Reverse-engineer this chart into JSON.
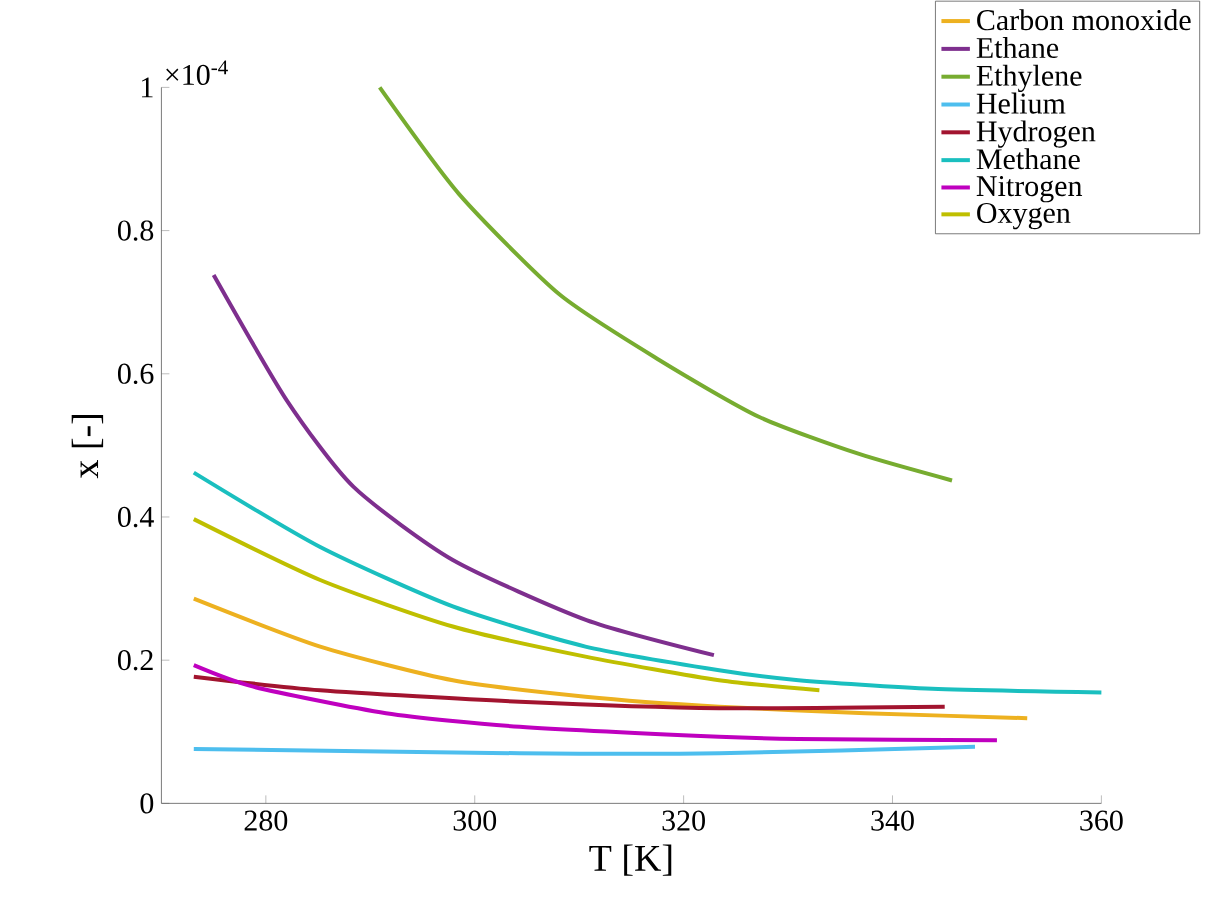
{
  "chart_data": {
    "type": "line",
    "xlabel": "T [K]",
    "ylabel": "x [-]",
    "annotations": [
      "×10$^{-4}$"
    ],
    "xlim": [
      270,
      360
    ],
    "ylim": [
      0,
      1
    ],
    "xticks": [
      280,
      300,
      320,
      340,
      360
    ],
    "yticks": [
      0,
      0.2,
      0.4,
      0.6,
      0.8,
      1
    ],
    "grid": false,
    "legend": "top right",
    "marker": "none",
    "line_style": "solid",
    "series": [
      {
        "name": "Carbon monoxide",
        "color": "#edb120",
        "x": [
          273.1,
          285.2,
          297.9,
          310.6,
          323.4,
          337.4,
          352.9
        ],
        "values": [
          0.286,
          0.219,
          0.172,
          0.149,
          0.135,
          0.126,
          0.119
        ]
      },
      {
        "name": "Ethane",
        "color": "#7e2f8e",
        "x": [
          275.0,
          282.0,
          288.4,
          297.9,
          310.7,
          322.9
        ],
        "values": [
          0.738,
          0.563,
          0.442,
          0.34,
          0.256,
          0.207
        ]
      },
      {
        "name": "Ethylene",
        "color": "#77ac30",
        "x": [
          290.9,
          298.5,
          308.1,
          317.7,
          327.2,
          336.8,
          345.7
        ],
        "values": [
          1.0,
          0.851,
          0.711,
          0.619,
          0.54,
          0.488,
          0.451
        ]
      },
      {
        "name": "Helium",
        "color": "#4dbeee",
        "x": [
          273.1,
          304.3,
          323.4,
          347.9
        ],
        "values": [
          0.076,
          0.07,
          0.07,
          0.079
        ]
      },
      {
        "name": "Hydrogen",
        "color": "#a2142f",
        "x": [
          273.1,
          285.2,
          304.3,
          323.4,
          345.0
        ],
        "values": [
          0.177,
          0.158,
          0.142,
          0.133,
          0.135
        ]
      },
      {
        "name": "Methane",
        "color": "#1abfbf",
        "x": [
          273.1,
          285.2,
          297.9,
          310.6,
          323.4,
          331.0,
          343.8,
          360
        ],
        "values": [
          0.462,
          0.358,
          0.275,
          0.219,
          0.186,
          0.172,
          0.16,
          0.155
        ]
      },
      {
        "name": "Nitrogen",
        "color": "#bf00bf",
        "x": [
          273.1,
          278.8,
          291.5,
          304.3,
          323.4,
          331.0,
          350.0
        ],
        "values": [
          0.193,
          0.163,
          0.126,
          0.107,
          0.093,
          0.09,
          0.088
        ]
      },
      {
        "name": "Oxygen",
        "color": "#bfbf00",
        "x": [
          273.1,
          285.2,
          297.9,
          310.6,
          323.4,
          333.0
        ],
        "values": [
          0.397,
          0.312,
          0.247,
          0.205,
          0.172,
          0.158
        ]
      }
    ]
  }
}
